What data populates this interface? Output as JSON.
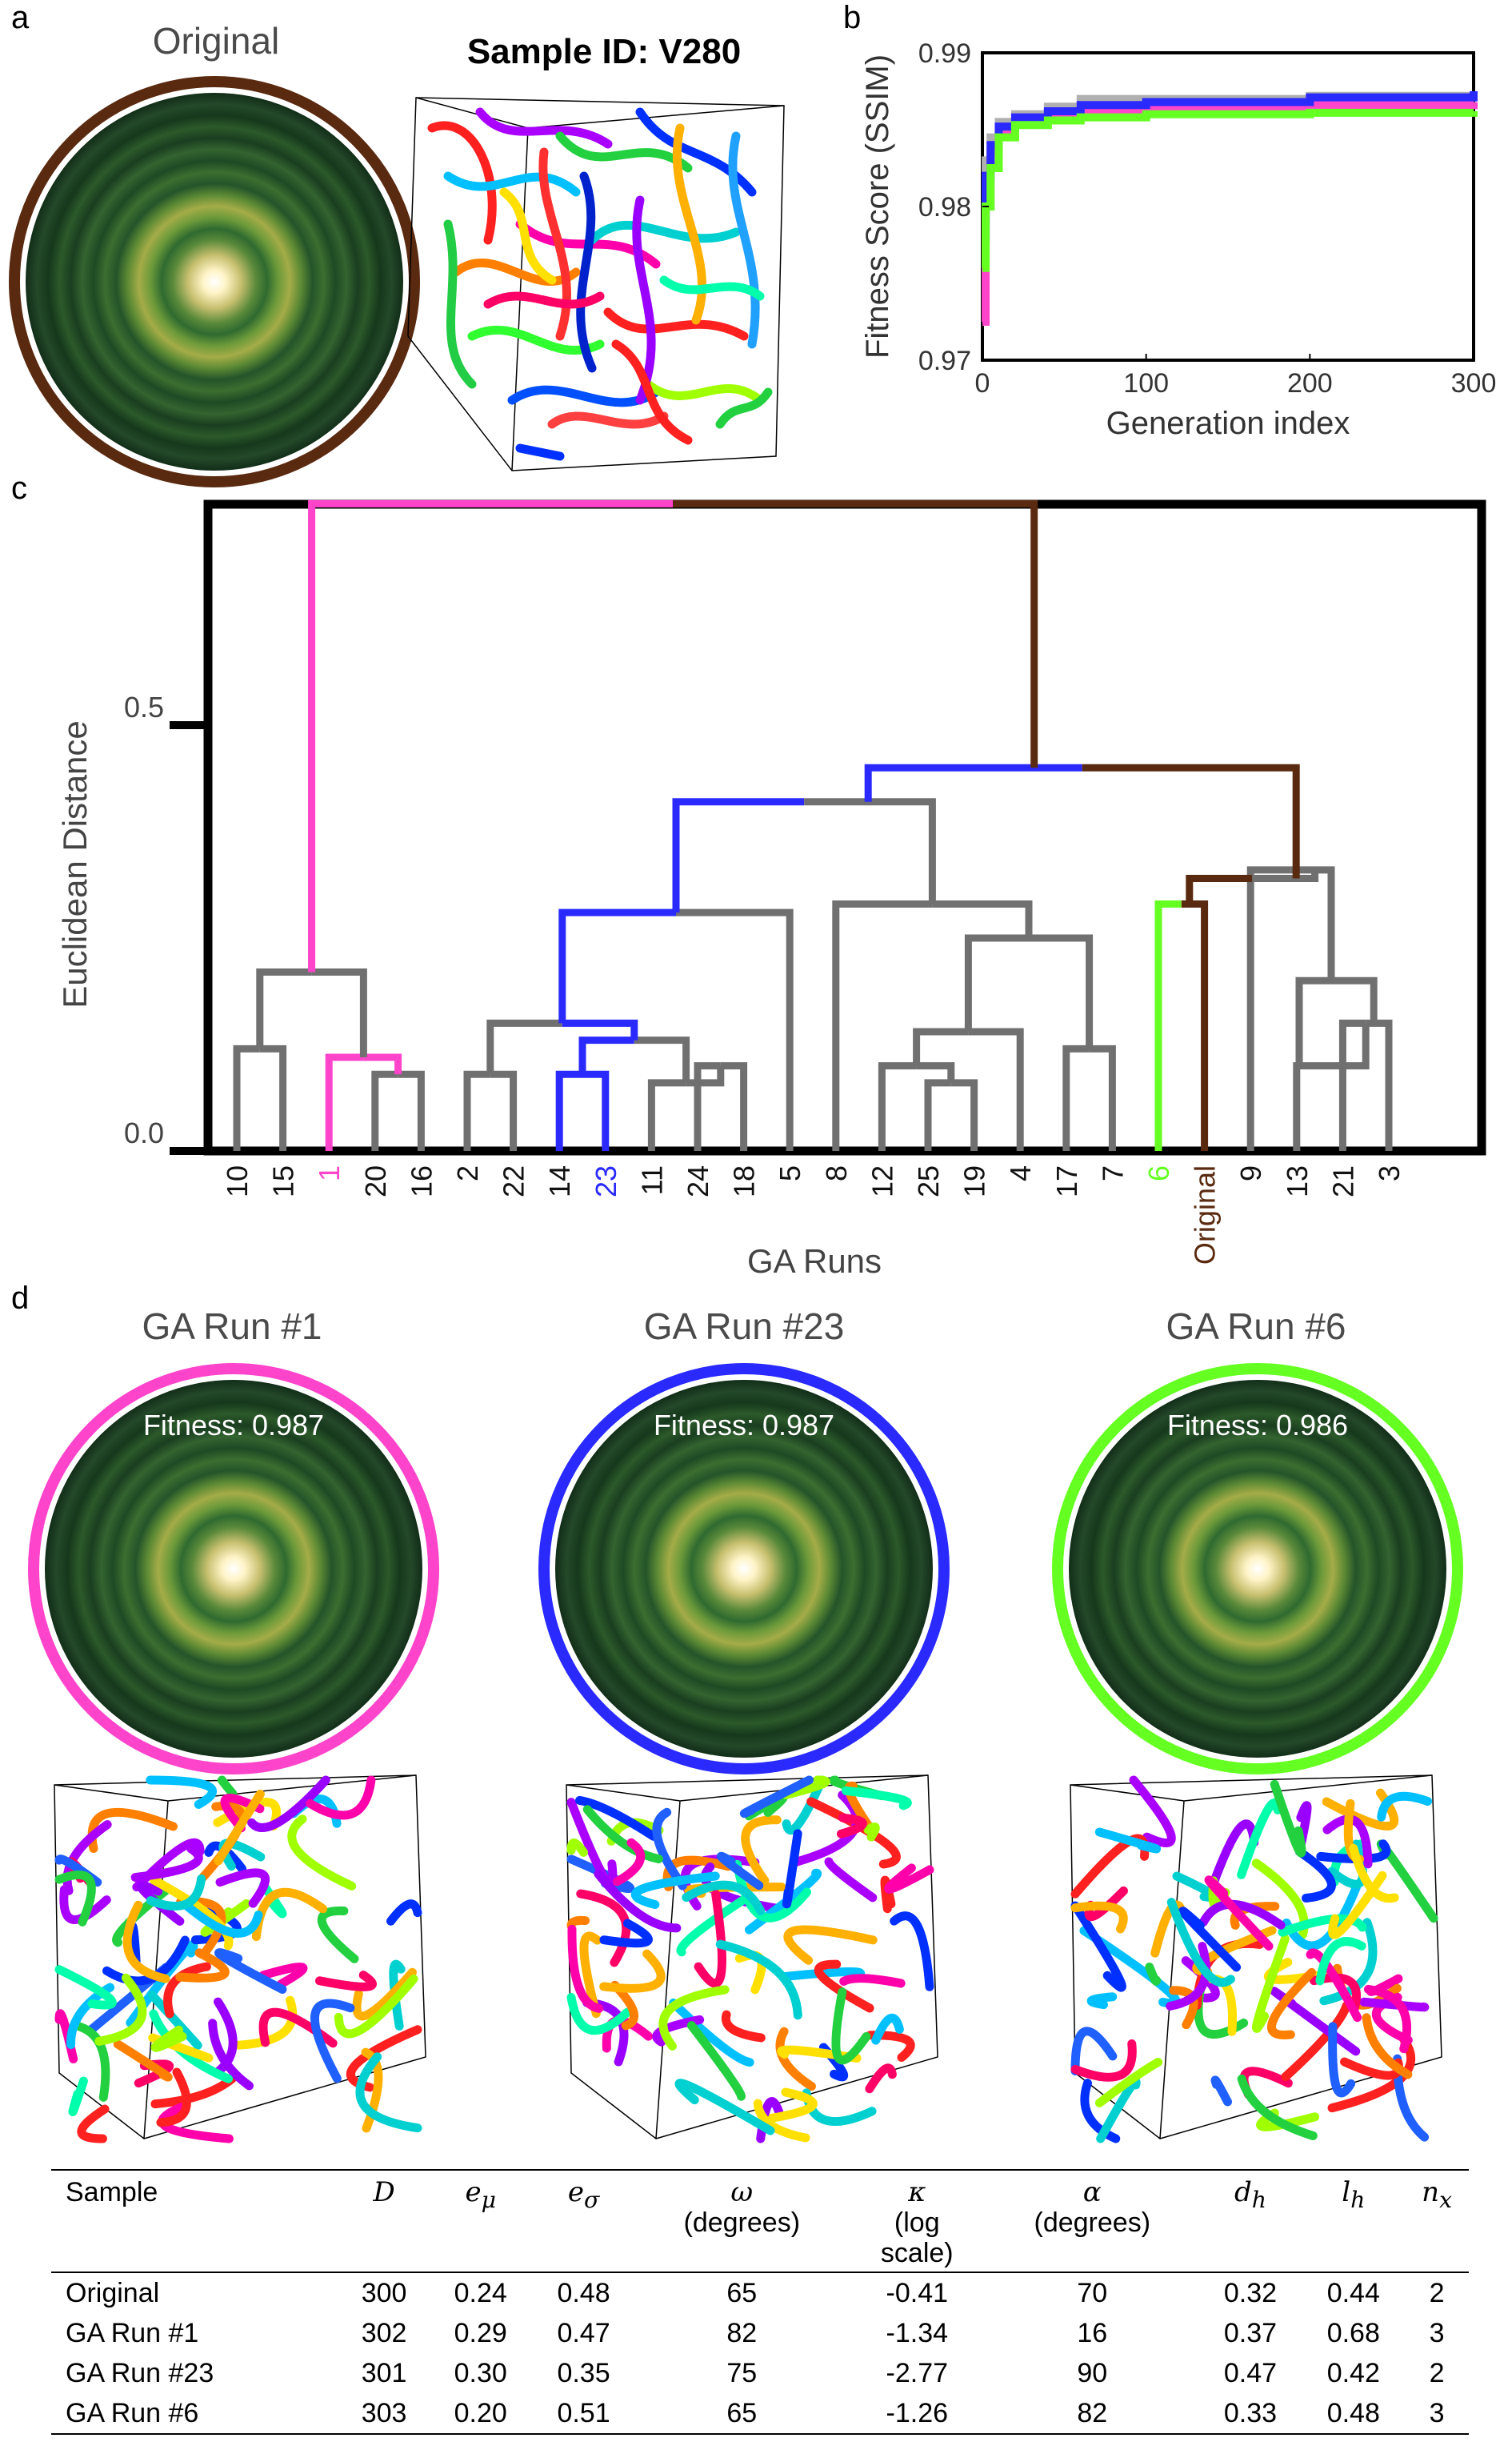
{
  "panel_labels": {
    "a": "a",
    "b": "b",
    "c": "c",
    "d": "d"
  },
  "panel_a": {
    "original_title": "Original",
    "sample_title": "Sample ID: V280"
  },
  "colors": {
    "original": "#5a2a10",
    "run1": "#ff44cc",
    "run23": "#2a2aff",
    "run6": "#66ff22",
    "gray_branch": "#707070",
    "gray_line": "#b0b0b0"
  },
  "chart_data": [
    {
      "type": "line",
      "panel": "b",
      "xlabel": "Generation index",
      "ylabel": "Fitness Score (SSIM)",
      "xlim": [
        0,
        300
      ],
      "ylim": [
        0.97,
        0.99
      ],
      "xticks": [
        "0",
        "100",
        "200",
        "300"
      ],
      "yticks": [
        "0.97",
        "0.98",
        "0.99"
      ],
      "series": [
        {
          "color": "#b0b0b0",
          "x": [
            0,
            2,
            5,
            10,
            20,
            40,
            60,
            100,
            200,
            300
          ],
          "y": [
            0.979,
            0.983,
            0.9845,
            0.9855,
            0.986,
            0.9865,
            0.987,
            0.987,
            0.9872,
            0.9873
          ]
        },
        {
          "color": "#ff44cc",
          "x": [
            0,
            2,
            5,
            10,
            20,
            40,
            60,
            100,
            200,
            300
          ],
          "y": [
            0.9725,
            0.98,
            0.9835,
            0.985,
            0.9857,
            0.986,
            0.9862,
            0.9864,
            0.9866,
            0.9868
          ]
        },
        {
          "color": "#2a2aff",
          "x": [
            0,
            2,
            5,
            10,
            20,
            40,
            60,
            100,
            200,
            300
          ],
          "y": [
            0.978,
            0.982,
            0.984,
            0.9852,
            0.9858,
            0.9862,
            0.9866,
            0.9868,
            0.9871,
            0.9875
          ]
        },
        {
          "color": "#66ff22",
          "x": [
            0,
            2,
            5,
            10,
            20,
            40,
            60,
            100,
            200,
            300
          ],
          "y": [
            0.976,
            0.98,
            0.9825,
            0.9845,
            0.9853,
            0.9856,
            0.9858,
            0.986,
            0.9861,
            0.9862
          ]
        }
      ]
    },
    {
      "type": "dendrogram",
      "panel": "c",
      "xlabel": "GA Runs",
      "ylabel": "Euclidean Distance",
      "ylim": [
        0,
        0.75
      ],
      "yticks": [
        "0.0",
        "0.5"
      ],
      "leaves": [
        "10",
        "15",
        "1",
        "20",
        "16",
        "2",
        "22",
        "14",
        "23",
        "11",
        "24",
        "18",
        "5",
        "8",
        "12",
        "25",
        "19",
        "4",
        "17",
        "7",
        "6",
        "Original",
        "9",
        "13",
        "21",
        "3"
      ],
      "merges": [
        {
          "left": "10",
          "right": "15",
          "height": 0.12,
          "color": "gray"
        },
        {
          "left": "20",
          "right": "16",
          "height": 0.09,
          "color": "gray"
        },
        {
          "left": "1",
          "right": "20,16",
          "height": 0.11,
          "color": "run1"
        },
        {
          "left": "10,15",
          "right": "1,20,16",
          "height": 0.21,
          "color": "gray"
        },
        {
          "left": "2",
          "right": "22",
          "height": 0.09,
          "color": "gray"
        },
        {
          "left": "14",
          "right": "23",
          "height": 0.09,
          "color": "run23"
        },
        {
          "left": "24",
          "right": "18",
          "height": 0.1,
          "color": "gray"
        },
        {
          "left": "11",
          "right": "24,18",
          "height": 0.08,
          "color": "gray"
        },
        {
          "left": "14,23",
          "right": "11,24,18",
          "height": 0.13,
          "color": "run23"
        },
        {
          "left": "2,22",
          "right": "14,23,11,24,18",
          "height": 0.15,
          "color": "gray"
        },
        {
          "left": "2..18",
          "right": "5",
          "height": 0.28,
          "color": "run23"
        },
        {
          "left": "25",
          "right": "19",
          "height": 0.08,
          "color": "gray"
        },
        {
          "left": "12",
          "right": "25,19",
          "height": 0.1,
          "color": "gray"
        },
        {
          "left": "12,25,19",
          "right": "4",
          "height": 0.14,
          "color": "gray"
        },
        {
          "left": "17",
          "right": "7",
          "height": 0.12,
          "color": "gray"
        },
        {
          "left": "12,25,19,4",
          "right": "17,7",
          "height": 0.25,
          "color": "gray"
        },
        {
          "left": "8",
          "right": "12..7",
          "height": 0.29,
          "color": "gray"
        },
        {
          "left": "2..5",
          "right": "8..7",
          "height": 0.41,
          "color": "gray"
        },
        {
          "left": "2..7",
          "right": "",
          "height": 0.45,
          "color": "run23"
        },
        {
          "left": "6",
          "right": "Original",
          "height": 0.29,
          "color": "run6"
        },
        {
          "left": "21",
          "right": "3",
          "height": 0.15,
          "color": "gray"
        },
        {
          "left": "13",
          "right": "21,3",
          "height": 0.1,
          "color": "gray"
        },
        {
          "left": "13,21,3",
          "right": "",
          "height": 0.2,
          "color": "gray"
        },
        {
          "left": "9",
          "right": "13,21,3",
          "height": 0.33,
          "color": "gray"
        },
        {
          "left": "6,Original",
          "right": "9..3",
          "height": 0.32,
          "color": "original"
        },
        {
          "left": "2..7",
          "right": "6..3",
          "height": 0.45,
          "color": "original"
        },
        {
          "left": "10..16",
          "right": "2..3",
          "height": 0.76,
          "color": "original"
        }
      ]
    }
  ],
  "panel_d": {
    "runs": [
      {
        "title": "GA Run #1",
        "fitness": "Fitness: 0.987",
        "color": "#ff44cc"
      },
      {
        "title": "GA Run #23",
        "fitness": "Fitness: 0.987",
        "color": "#2a2aff"
      },
      {
        "title": "GA Run #6",
        "fitness": "Fitness: 0.986",
        "color": "#66ff22"
      }
    ]
  },
  "table": {
    "headers": {
      "sample": "Sample",
      "D": "D",
      "e_mu": "e",
      "e_mu_sub": "μ",
      "e_sigma": "e",
      "e_sigma_sub": "σ",
      "omega": "ω",
      "omega_unit": "(degrees)",
      "kappa": "κ",
      "kappa_unit1": "(log",
      "kappa_unit2": "scale)",
      "alpha": "α",
      "alpha_unit": "(degrees)",
      "d_h": "d",
      "d_h_sub": "h",
      "l_h": "l",
      "l_h_sub": "h",
      "n_x": "n",
      "n_x_sub": "x"
    },
    "rows": [
      [
        "Original",
        "300",
        "0.24",
        "0.48",
        "65",
        "-0.41",
        "70",
        "0.32",
        "0.44",
        "2"
      ],
      [
        "GA Run #1",
        "302",
        "0.29",
        "0.47",
        "82",
        "-1.34",
        "16",
        "0.37",
        "0.68",
        "3"
      ],
      [
        "GA Run #23",
        "301",
        "0.30",
        "0.35",
        "75",
        "-2.77",
        "90",
        "0.47",
        "0.42",
        "2"
      ],
      [
        "GA Run #6",
        "303",
        "0.20",
        "0.51",
        "65",
        "-1.26",
        "82",
        "0.33",
        "0.48",
        "3"
      ]
    ]
  }
}
